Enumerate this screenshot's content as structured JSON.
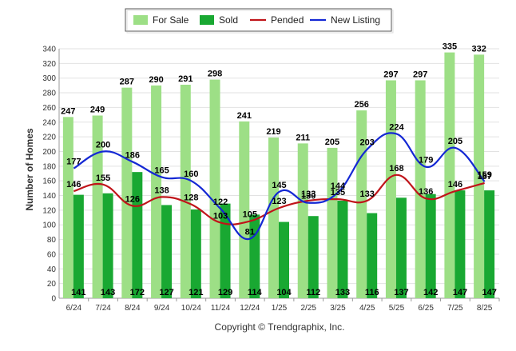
{
  "chart_data": {
    "type": "bar",
    "ylabel": "Number of Homes",
    "ylim": [
      0,
      340
    ],
    "yticks": [
      0,
      20,
      40,
      60,
      80,
      100,
      120,
      140,
      160,
      180,
      200,
      220,
      240,
      260,
      280,
      300,
      320,
      340
    ],
    "grid": true,
    "legend_position": "top-center",
    "categories": [
      "6/24",
      "7/24",
      "8/24",
      "9/24",
      "10/24",
      "11/24",
      "12/24",
      "1/25",
      "2/25",
      "3/25",
      "4/25",
      "5/25",
      "6/25",
      "7/25",
      "8/25"
    ],
    "series": [
      {
        "name": "For Sale",
        "kind": "bar",
        "color": "#9ddf86",
        "values": [
          247,
          249,
          287,
          290,
          291,
          298,
          241,
          219,
          211,
          205,
          256,
          297,
          297,
          335,
          332
        ]
      },
      {
        "name": "Sold",
        "kind": "bar",
        "color": "#19a832",
        "values": [
          141,
          143,
          172,
          127,
          121,
          129,
          114,
          104,
          112,
          133,
          116,
          137,
          142,
          147,
          147
        ]
      },
      {
        "name": "Pended",
        "kind": "line",
        "color": "#c0141a",
        "values": [
          146,
          155,
          126,
          138,
          128,
          103,
          105,
          123,
          133,
          135,
          133,
          168,
          136,
          146,
          157
        ]
      },
      {
        "name": "New Listing",
        "kind": "line",
        "color": "#1428d4",
        "values": [
          177,
          200,
          186,
          165,
          160,
          122,
          81,
          145,
          130,
          144,
          203,
          224,
          179,
          205,
          159
        ]
      }
    ]
  },
  "footer": {
    "copyright": "Copyright © Trendgraphix, Inc."
  }
}
